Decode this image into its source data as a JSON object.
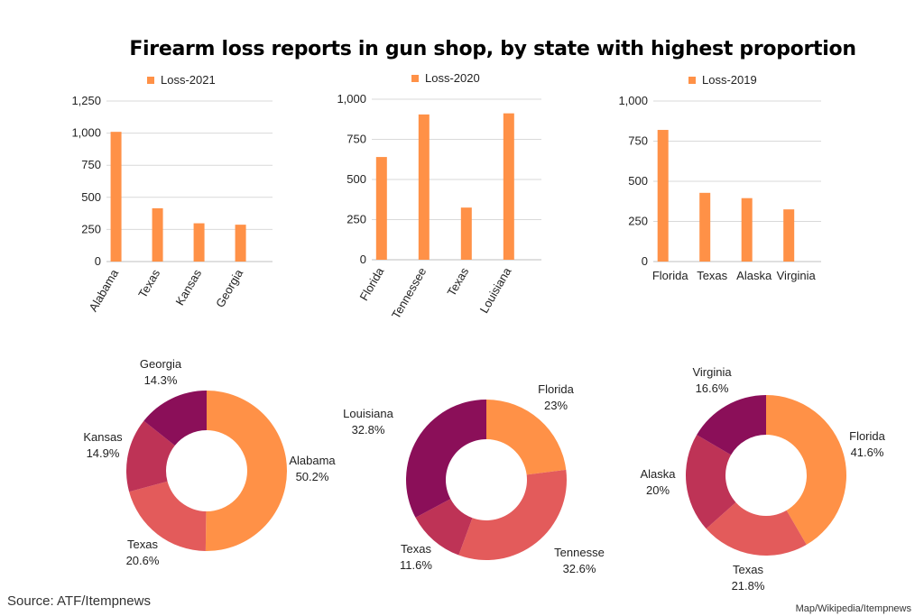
{
  "title": "Firearm loss reports in gun shop, by state with highest proportion",
  "source": "Source: ATF/Itempnews",
  "credit": "Map/Wikipedia/Itempnews",
  "colors": {
    "bar": "#FF9147",
    "grid": "#d9d9d9",
    "axis": "#bfbfbf",
    "pie": [
      "#FF9147",
      "#E35B5B",
      "#BE3356",
      "#8B0F59"
    ]
  },
  "chart_data": [
    {
      "type": "bar",
      "legend": "Loss-2021",
      "categories": [
        "Alabama",
        "Texas",
        "Kansas",
        "Georgia"
      ],
      "values": [
        1010,
        415,
        298,
        287
      ],
      "ylim": [
        0,
        1250
      ],
      "yticks": [
        "0",
        "250",
        "500",
        "750",
        "1,000",
        "1,250"
      ],
      "rotated_labels": true
    },
    {
      "type": "bar",
      "legend": "Loss-2020",
      "categories": [
        "Florida",
        "Tennessee",
        "Texas",
        "Louisiana"
      ],
      "values": [
        640,
        905,
        325,
        912
      ],
      "ylim": [
        0,
        1000
      ],
      "yticks": [
        "0",
        "250",
        "500",
        "750",
        "1,000"
      ],
      "rotated_labels": true
    },
    {
      "type": "bar",
      "legend": "Loss-2019",
      "categories": [
        "Florida",
        "Texas",
        "Alaska",
        "Virginia"
      ],
      "values": [
        820,
        428,
        395,
        325
      ],
      "ylim": [
        0,
        1000
      ],
      "yticks": [
        "0",
        "250",
        "500",
        "750",
        "1,000"
      ],
      "rotated_labels": false
    },
    {
      "type": "pie",
      "donut": true,
      "slices": [
        {
          "label": "Alabama",
          "pct": "50.2%",
          "value": 50.2
        },
        {
          "label": "Texas",
          "pct": "20.6%",
          "value": 20.6
        },
        {
          "label": "Kansas",
          "pct": "14.9%",
          "value": 14.9
        },
        {
          "label": "Georgia",
          "pct": "14.3%",
          "value": 14.3
        }
      ]
    },
    {
      "type": "pie",
      "donut": true,
      "slices": [
        {
          "label": "Florida",
          "pct": "23%",
          "value": 23
        },
        {
          "label": "Tennesse",
          "pct": "32.6%",
          "value": 32.6
        },
        {
          "label": "Texas",
          "pct": "11.6%",
          "value": 11.6
        },
        {
          "label": "Louisiana",
          "pct": "32.8%",
          "value": 32.8
        }
      ]
    },
    {
      "type": "pie",
      "donut": true,
      "slices": [
        {
          "label": "Florida",
          "pct": "41.6%",
          "value": 41.6
        },
        {
          "label": "Texas",
          "pct": "21.8%",
          "value": 21.8
        },
        {
          "label": "Alaska",
          "pct": "20%",
          "value": 20
        },
        {
          "label": "Virginia",
          "pct": "16.6%",
          "value": 16.6
        }
      ]
    }
  ]
}
